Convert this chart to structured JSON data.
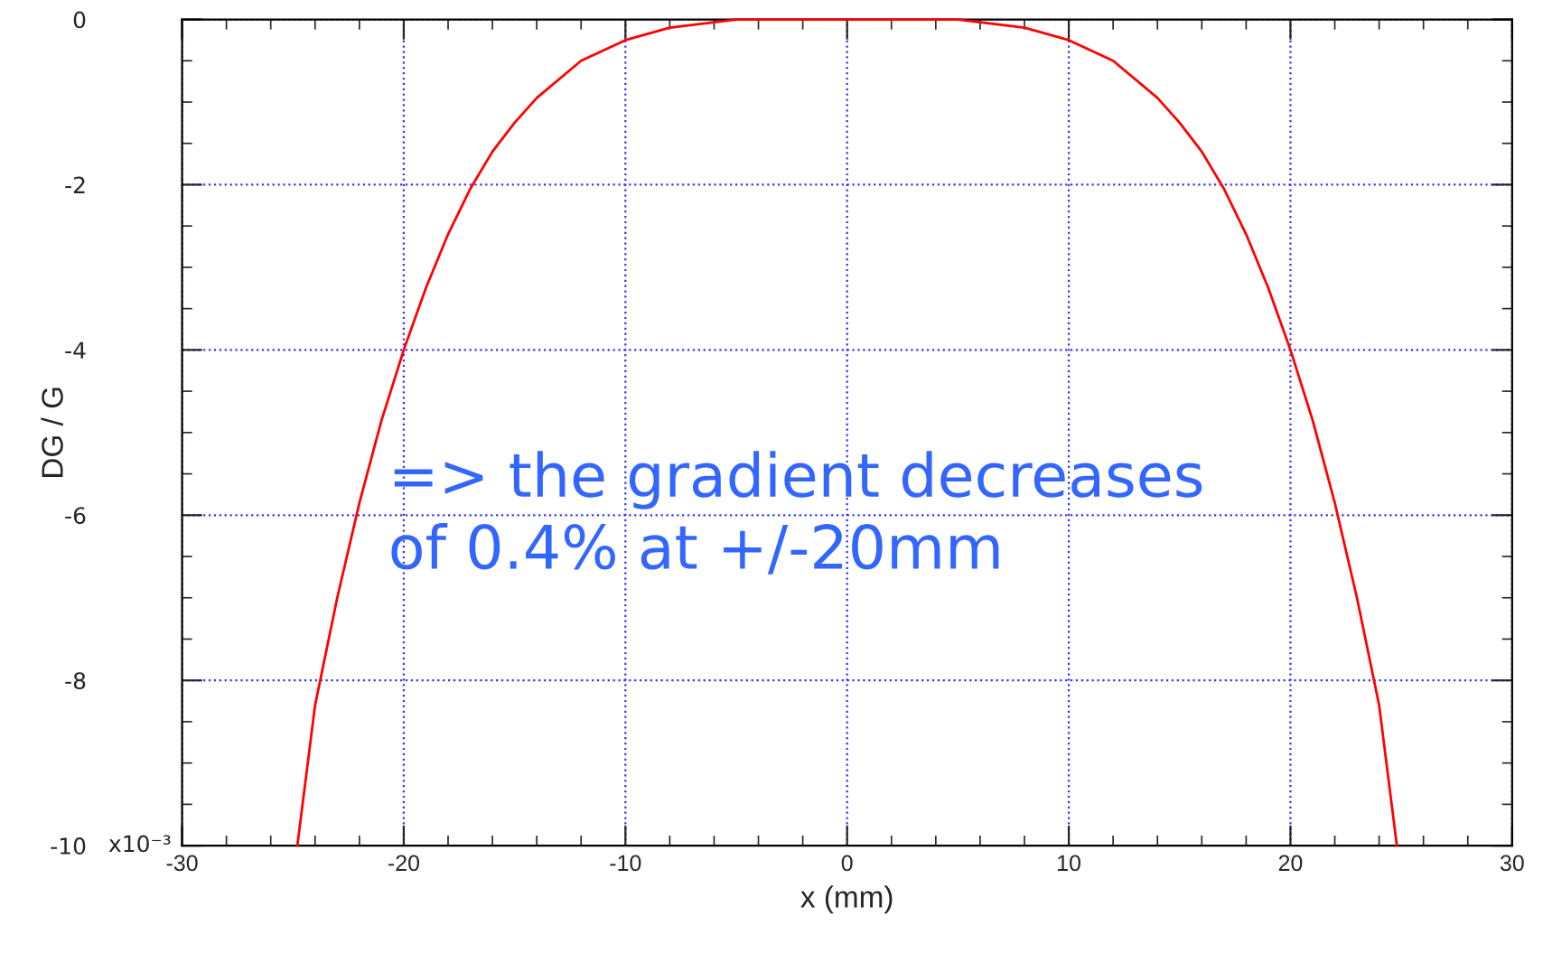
{
  "chart_data": {
    "type": "line",
    "xlabel": "x (mm)",
    "ylabel": "DG / G",
    "annotations": [
      "=> the gradient decreases\nof 0.4% at +/-20mm",
      "x10⁻³"
    ],
    "series": [
      {
        "color": "#ff0000",
        "x": [
          -24.8,
          -24,
          -23,
          -22,
          -21,
          -20,
          -19,
          -18,
          -17,
          -16,
          -15,
          -14,
          -12,
          -10,
          -8,
          -5,
          0,
          5,
          8,
          10,
          12,
          14,
          15,
          16,
          17,
          18,
          19,
          20,
          21,
          22,
          23,
          24,
          24.8
        ],
        "values": [
          -10,
          -8.3,
          -7.0,
          -5.85,
          -4.85,
          -4.0,
          -3.25,
          -2.6,
          -2.05,
          -1.6,
          -1.25,
          -0.95,
          -0.5,
          -0.25,
          -0.1,
          0,
          0,
          0,
          -0.1,
          -0.25,
          -0.5,
          -0.95,
          -1.25,
          -1.6,
          -2.05,
          -2.6,
          -3.25,
          -4.0,
          -4.85,
          -5.85,
          -7.0,
          -8.3,
          -10
        ]
      }
    ],
    "xlim": [
      -30,
      30
    ],
    "xticks": [
      -30,
      -20,
      -10,
      0,
      10,
      20,
      30
    ],
    "ylim": [
      -10,
      0
    ],
    "yticks": [
      -10,
      -8,
      -6,
      -4,
      -2,
      0
    ],
    "grid": true,
    "legend": false,
    "marker": "none",
    "line_style": "solid"
  }
}
